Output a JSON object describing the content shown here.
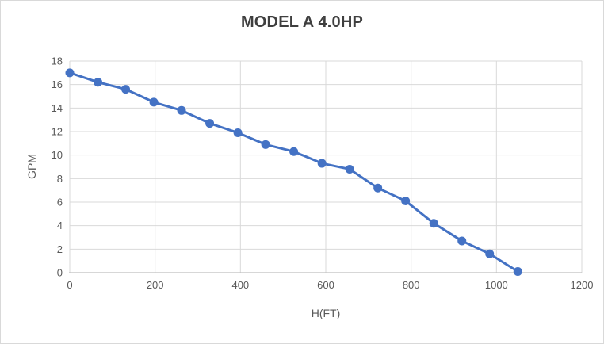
{
  "chart_data": {
    "type": "line",
    "title": "MODEL A 4.0HP",
    "xlabel": "H(FT)",
    "ylabel": "GPM",
    "xlim": [
      0,
      1200
    ],
    "ylim": [
      0,
      18
    ],
    "xticks": [
      0,
      200,
      400,
      600,
      800,
      1000,
      1200
    ],
    "yticks": [
      0,
      2,
      4,
      6,
      8,
      10,
      12,
      14,
      16,
      18
    ],
    "grid": true,
    "legend": "none",
    "series": [
      {
        "name": "MODEL A 4.0HP",
        "x": [
          0,
          66,
          131,
          197,
          262,
          328,
          394,
          459,
          525,
          591,
          656,
          722,
          787,
          853,
          919,
          984,
          1050
        ],
        "y": [
          17.0,
          16.2,
          15.6,
          14.5,
          13.8,
          12.7,
          11.9,
          10.9,
          10.3,
          9.3,
          8.8,
          7.2,
          6.1,
          4.2,
          2.7,
          1.6,
          0.1
        ],
        "color": "#4472C4",
        "marker": "circle"
      }
    ]
  },
  "colors": {
    "line": "#4472C4",
    "marker": "#4472C4",
    "gridline": "#d9d9d9",
    "axis_line": "#bfbfbf",
    "tick_text": "#595959",
    "axis_title_text": "#595959",
    "chart_title_text": "#3f3f3f",
    "border": "#d9d9d9",
    "background": "#ffffff"
  }
}
